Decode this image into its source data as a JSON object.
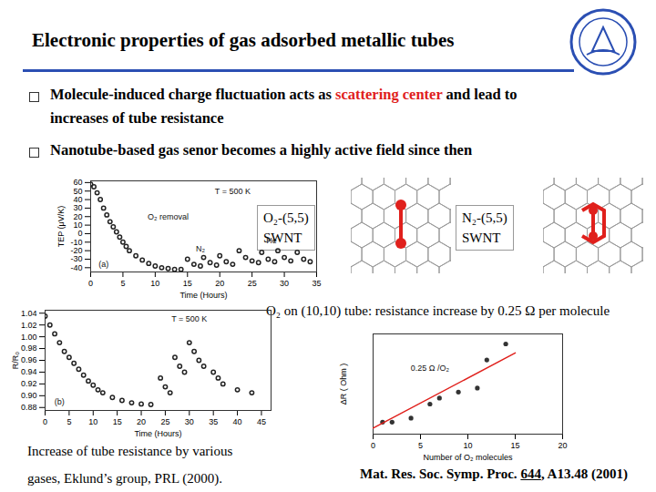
{
  "title": "Electronic properties of gas adsorbed metallic tubes",
  "bullets": [
    [
      {
        "text": "Molecule-induced charge fluctuation acts as ",
        "color": "#000000"
      },
      {
        "text": "scattering center",
        "color": "#e0201c"
      },
      {
        "text": " and lead to",
        "color": "#000000"
      }
    ],
    [
      {
        "text": "increases of tube resistance",
        "color": "#000000"
      }
    ],
    [
      {
        "text": "Nanotube-based gas senor becomes a highly active field since then",
        "color": "#000000"
      }
    ]
  ],
  "molecule_labels": [
    [
      "O₂-(5,5)",
      "SWNT"
    ],
    [
      "N₂-(5,5)",
      "SWNT"
    ]
  ],
  "o2_note": "O₂ on (10,10) tube: resistance increase by 0.25 Ω per molecule",
  "caption_left": [
    "Increase of tube resistance by various",
    "gases, Eklund’s group, PRL (2000)."
  ],
  "caption_right": [
    {
      "text": "Mat. Res. Soc. Symp. Proc. "
    },
    {
      "text": "644",
      "underline": true
    },
    {
      "text": ", A13.48 (2001)"
    }
  ],
  "chart_data": [
    {
      "type": "scatter",
      "x_label": "Time (Hours)",
      "y_label": "TEP (μV/K)",
      "marker": "open_circle",
      "color": "#222222",
      "xlim": [
        0,
        35
      ],
      "xticks": [
        0,
        5,
        10,
        15,
        20,
        25,
        30,
        35
      ],
      "ylim": [
        -45,
        62
      ],
      "yticks": [
        -40,
        -30,
        -20,
        -10,
        0,
        10,
        20,
        30,
        40,
        50,
        60
      ],
      "x": [
        0,
        0.5,
        1,
        1.5,
        2,
        2.5,
        3,
        3.5,
        4,
        4.5,
        5,
        5.5,
        6,
        7,
        8,
        9,
        10,
        11,
        12,
        13,
        14,
        15,
        16,
        17,
        17.5,
        18.5,
        19.5,
        20,
        21,
        22,
        23,
        24,
        25,
        26,
        26.5,
        27.5,
        28.5,
        29,
        30,
        31,
        32,
        33,
        34
      ],
      "values": [
        58,
        55,
        48,
        40,
        30,
        22,
        14,
        8,
        2,
        -4,
        -10,
        -15,
        -20,
        -26,
        -31,
        -35,
        -38,
        -40,
        -41,
        -42,
        -42,
        -30,
        -36,
        -38,
        -28,
        -34,
        -37,
        -26,
        -33,
        -36,
        -20,
        -28,
        -32,
        -34,
        -22,
        -30,
        -33,
        -20,
        -28,
        -32,
        -22,
        -30,
        -33
      ],
      "annotations": [
        {
          "text": "T = 500 K",
          "x": 22,
          "y": 50
        },
        {
          "text": "O₂ removal",
          "x": 12,
          "y": 20
        },
        {
          "text": "N₂",
          "x": 17,
          "y": -18
        },
        {
          "text": "He",
          "x": 28,
          "y": -8
        },
        {
          "text": "(a)",
          "x": 2,
          "y": -36
        }
      ]
    },
    {
      "type": "scatter",
      "x_label": "Time (Hours)",
      "y_label": "R/R₀",
      "marker": "open_circle",
      "color": "#222222",
      "xlim": [
        0,
        47
      ],
      "xticks": [
        0,
        5,
        10,
        15,
        20,
        25,
        30,
        35,
        40,
        45
      ],
      "ylim": [
        0.875,
        1.045
      ],
      "yticks": [
        0.88,
        {
          "value": 0.9,
          "label": "0.90"
        },
        0.92,
        0.94,
        0.96,
        0.98,
        {
          "value": 1,
          "label": "1.00"
        },
        1.02,
        1.04
      ],
      "x": [
        0,
        1,
        2,
        3,
        4,
        5,
        6,
        7,
        8,
        9,
        10,
        11,
        12,
        14,
        16,
        18,
        20,
        22,
        24,
        25,
        26,
        27,
        28,
        29,
        30,
        31,
        32,
        33,
        35,
        36,
        37,
        40,
        43
      ],
      "values": [
        1.035,
        1.02,
        1.005,
        0.99,
        0.975,
        0.965,
        0.955,
        0.945,
        0.935,
        0.925,
        0.918,
        0.91,
        0.905,
        0.897,
        0.892,
        0.888,
        0.886,
        0.885,
        0.93,
        0.915,
        0.905,
        0.965,
        0.95,
        0.94,
        0.99,
        0.975,
        0.96,
        0.95,
        0.94,
        0.93,
        0.92,
        0.91,
        0.905
      ],
      "annotations": [
        {
          "text": "T = 500 K",
          "x": 30,
          "y": 1.03
        },
        {
          "text": "(b)",
          "x": 3,
          "y": 0.89
        }
      ]
    },
    {
      "type": "scatter",
      "x_label": "Number of O₂ molecules",
      "y_label": "ΔR ( Ohm )",
      "tick_labels": "x",
      "xlim": [
        0,
        20
      ],
      "xticks": [
        0,
        5,
        10,
        15,
        20
      ],
      "ylim": [
        0,
        5
      ],
      "yticks": [],
      "series": [
        {
          "type": "scatter",
          "marker": "dot",
          "color": "#333333",
          "x": [
            1,
            2,
            4,
            6,
            7,
            9,
            11,
            12,
            14
          ],
          "values": [
            0.6,
            0.6,
            0.8,
            1.5,
            1.8,
            2.1,
            2.3,
            3.7,
            4.5
          ]
        },
        {
          "type": "line",
          "line_style": "solid",
          "color": "#e0201c",
          "x": [
            0,
            15
          ],
          "values": [
            0.3,
            4.05
          ]
        }
      ],
      "annotations": [
        {
          "text": "0.25 Ω /O₂",
          "x": 6,
          "y": 3.3
        }
      ]
    }
  ]
}
